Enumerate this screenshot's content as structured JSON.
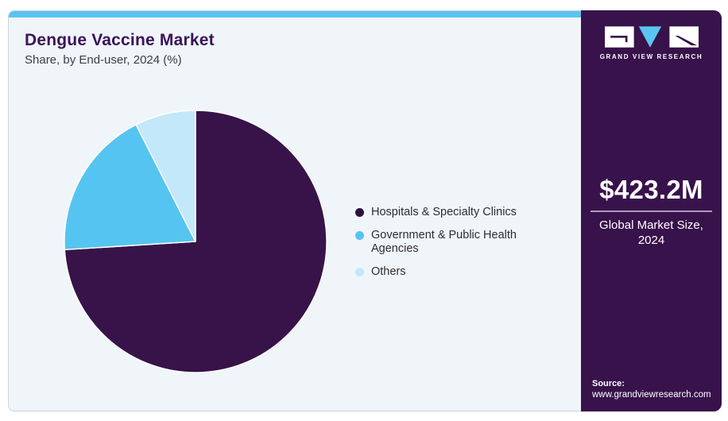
{
  "header": {
    "title": "Dengue Vaccine Market",
    "subtitle": "Share, by End-user, 2024 (%)"
  },
  "legend": {
    "items": [
      {
        "label": "Hospitals & Specialty Clinics",
        "color": "#301040"
      },
      {
        "label": "Government & Public Health Agencies",
        "color": "#56c4f1"
      },
      {
        "label": "Others",
        "color": "#c3e8fa"
      }
    ]
  },
  "chart_data": {
    "type": "pie",
    "title": "Dengue Vaccine Market",
    "subtitle": "Share, by End-user, 2024 (%)",
    "categories": [
      "Hospitals & Specialty Clinics",
      "Government & Public Health Agencies",
      "Others"
    ],
    "values": [
      74.0,
      18.5,
      7.5
    ],
    "colors": [
      "#371349",
      "#56c4f1",
      "#c3e8fa"
    ],
    "start_angle_deg": 0,
    "direction": "clockwise",
    "legend_position": "right",
    "units": "%"
  },
  "sidebar": {
    "logo_text": "GRAND VIEW RESEARCH",
    "market_value": "$423.2M",
    "market_label_line1": "Global Market Size,",
    "market_label_line2": "2024",
    "source_label": "Source:",
    "source_url": "www.grandviewresearch.com"
  },
  "colors": {
    "accent_strip": "#5ac4f1",
    "panel_bg": "#f0f5fa",
    "sidebar_bg": "#38124b",
    "title": "#3a1457",
    "logo_triangle": "#5ac4f1"
  }
}
